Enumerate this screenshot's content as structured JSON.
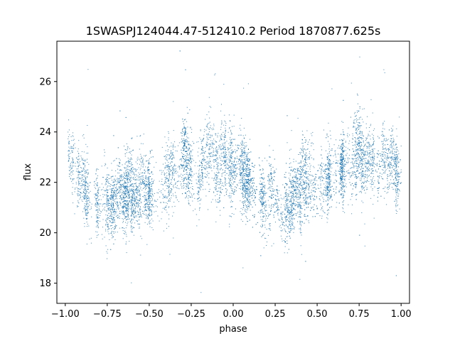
{
  "chart_data": {
    "type": "scatter",
    "title": "1SWASPJ124044.47-512410.2 Period 1870877.625s",
    "xlabel": "phase",
    "ylabel": "flux",
    "xlim": [
      -1.05,
      1.05
    ],
    "ylim": [
      17.2,
      27.6
    ],
    "xticks": [
      -1.0,
      -0.75,
      -0.5,
      -0.25,
      0.0,
      0.25,
      0.5,
      0.75,
      1.0
    ],
    "xtick_labels": [
      "−1.00",
      "−0.75",
      "−0.50",
      "−0.25",
      "0.00",
      "0.25",
      "0.50",
      "0.75",
      "1.00"
    ],
    "yticks": [
      18,
      20,
      22,
      24,
      26
    ],
    "ytick_labels": [
      "18",
      "20",
      "22",
      "24",
      "26"
    ],
    "grid": false,
    "marker_color": "#1f77b4",
    "series": [
      {
        "points_x_range": [
          -1.0,
          1.0
        ],
        "approx_point_count": 9000,
        "trend_phase": [
          0.0,
          0.05,
          0.1,
          0.15,
          0.2,
          0.25,
          0.3,
          0.35,
          0.4,
          0.45,
          0.5,
          0.55,
          0.6,
          0.65,
          0.7,
          0.75,
          0.8,
          0.85,
          0.9,
          0.95,
          1.0
        ],
        "trend_flux": [
          22.8,
          22.5,
          22.1,
          21.7,
          21.5,
          21.4,
          21.2,
          21.4,
          21.7,
          21.8,
          21.9,
          22.1,
          22.3,
          22.6,
          22.9,
          23.1,
          22.7,
          22.9,
          22.6,
          22.9,
          22.8
        ]
      }
    ]
  }
}
